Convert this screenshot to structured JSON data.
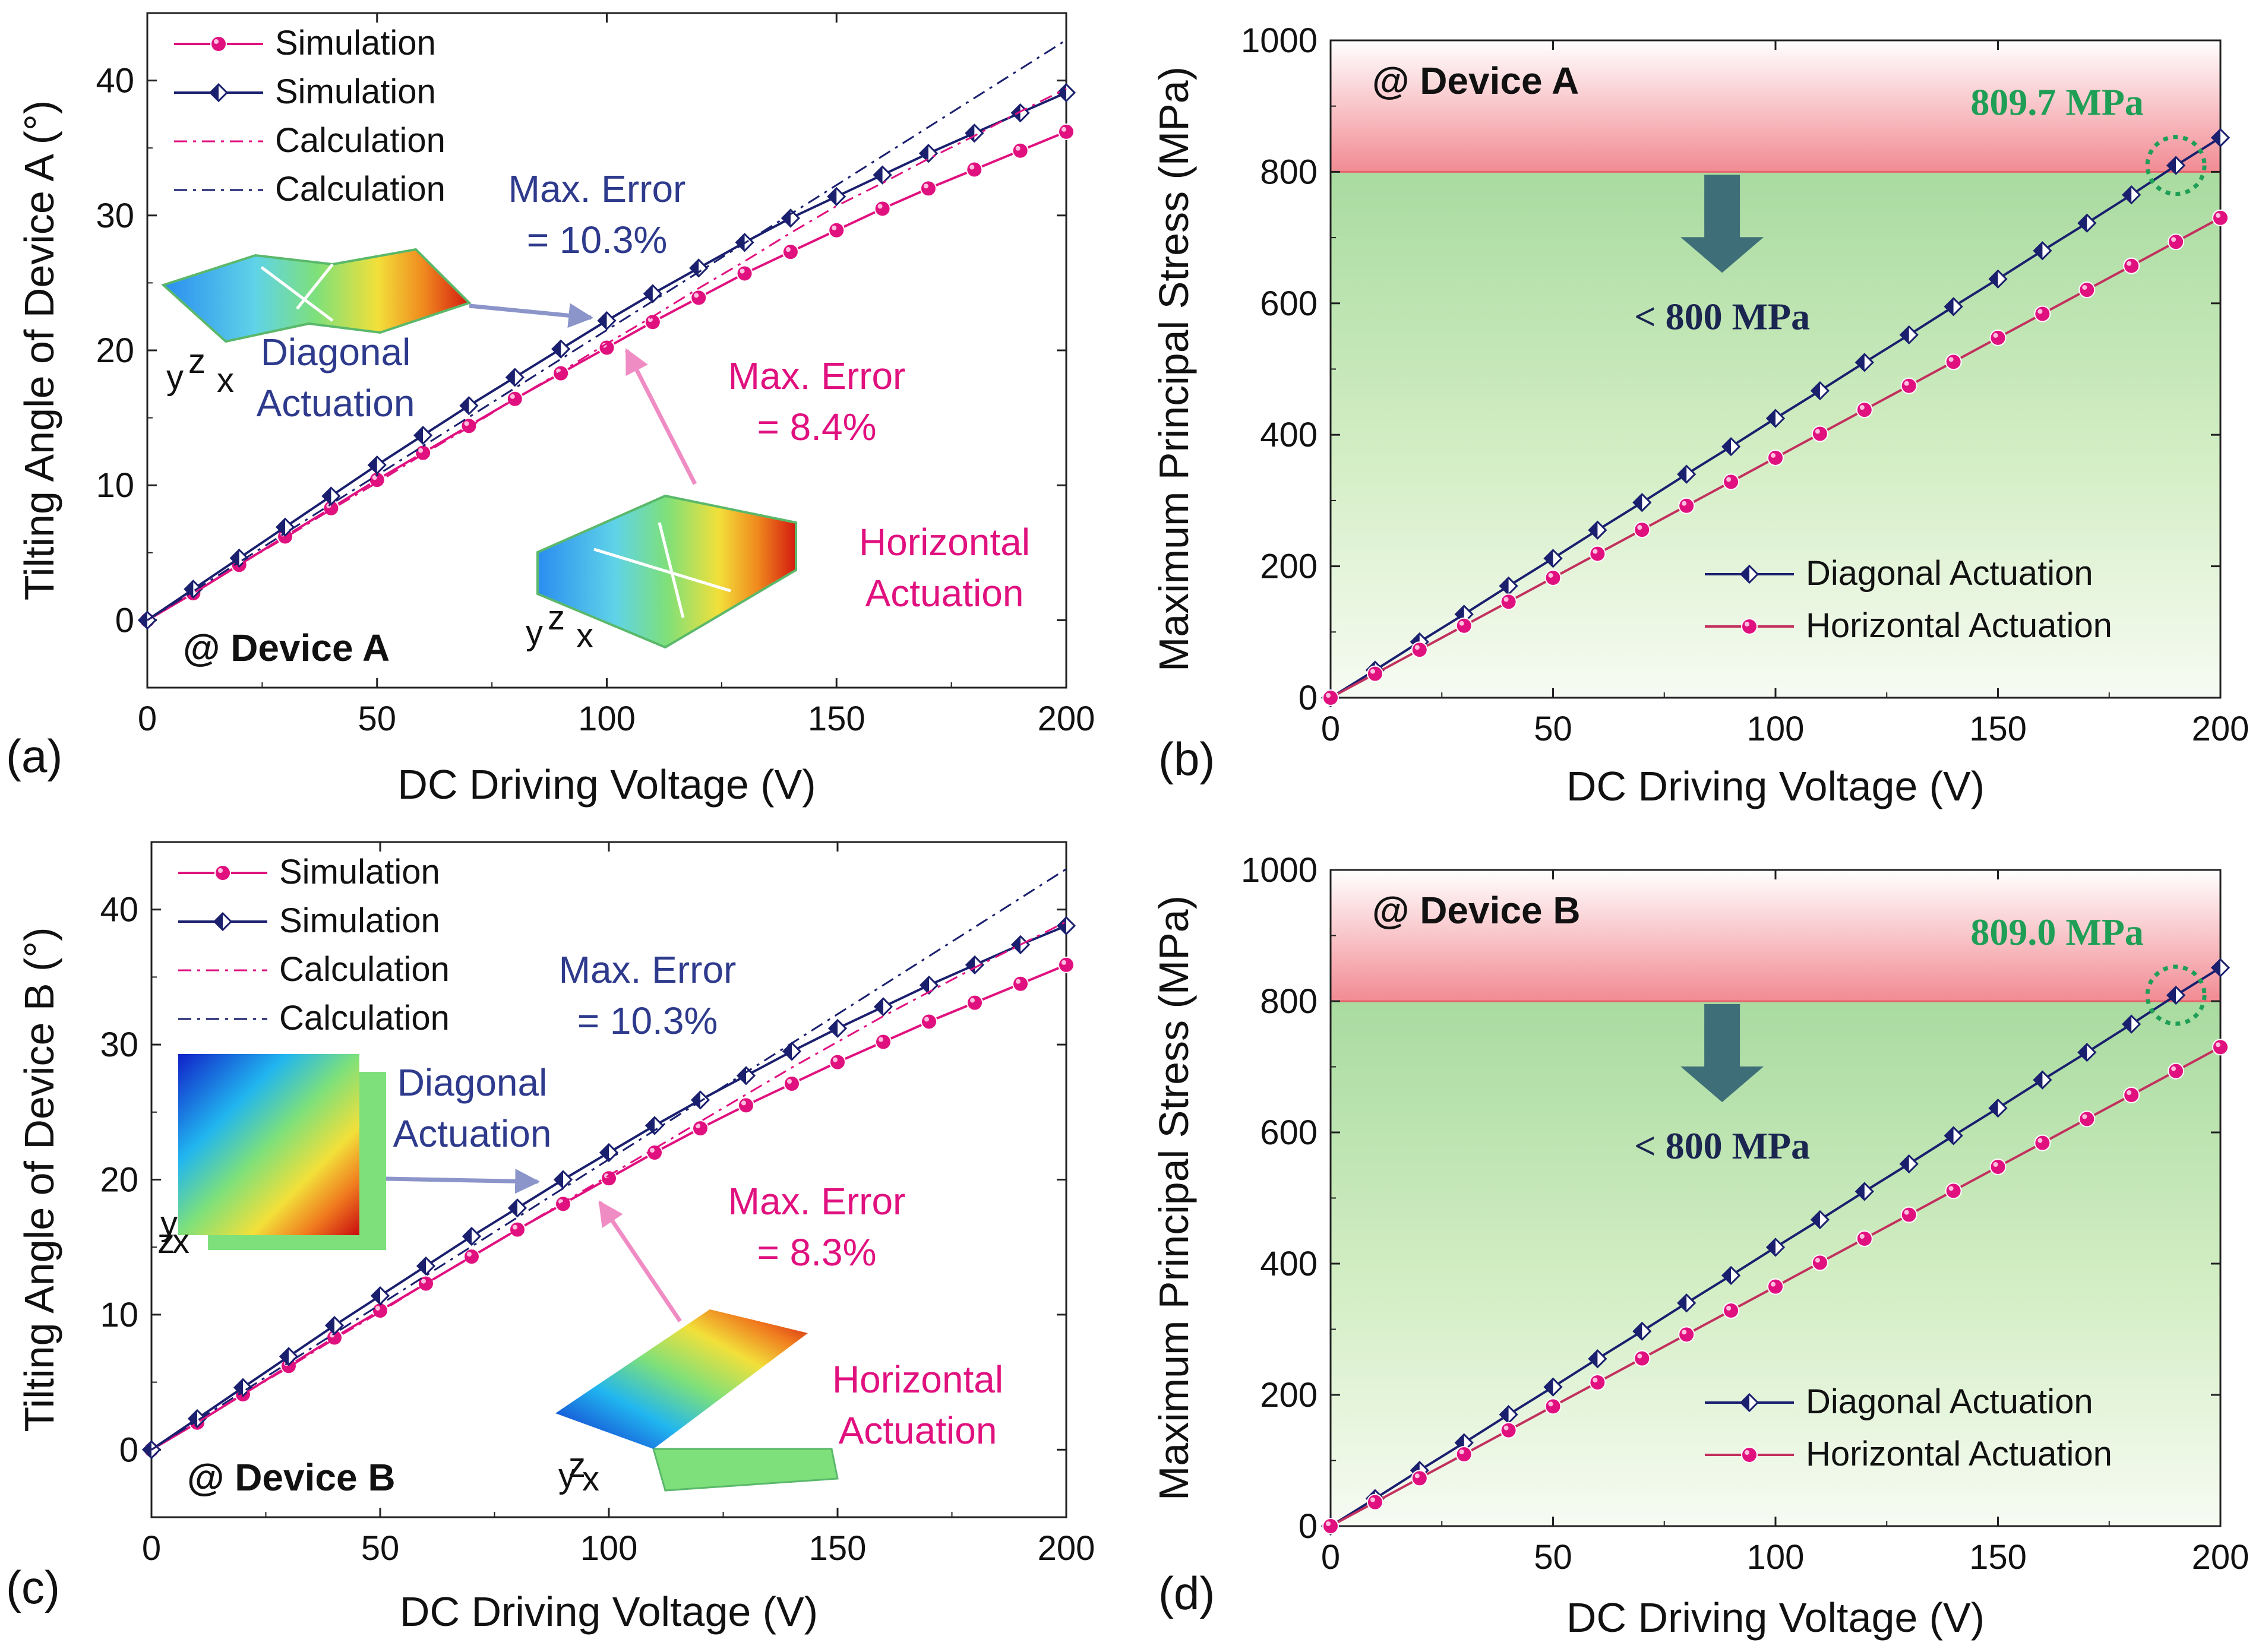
{
  "colors": {
    "horizontal": "#e0117f",
    "horizontal_line": "#c2305e",
    "diagonal": "#1a1f6e",
    "annot_blue": "#2e3a8c",
    "stress_green": "#1f9e56",
    "arrow_dark": "#3e6f78",
    "danger_band": "#f4a0a4"
  },
  "chart_data": [
    {
      "type": "line",
      "panel_label": "(a)",
      "device_label": "@ Device A",
      "xlabel": "DC Driving Voltage (V)",
      "ylabel": "Tilting Angle of Device A (°)",
      "xlim": [
        0,
        200
      ],
      "ylim": [
        -5,
        45
      ],
      "xticks": [
        "0",
        "50",
        "100",
        "150",
        "200"
      ],
      "yticks": [
        "0",
        "10",
        "20",
        "30",
        "40"
      ],
      "x": [
        0,
        10,
        20,
        30,
        40,
        50,
        60,
        70,
        80,
        90,
        100,
        110,
        120,
        130,
        140,
        150,
        160,
        170,
        180,
        190,
        200
      ],
      "series": [
        {
          "name": "Simulation",
          "kind": "horizontal-sim",
          "values": [
            0,
            2.0,
            4.1,
            6.2,
            8.3,
            10.4,
            12.4,
            14.4,
            16.4,
            18.3,
            20.2,
            22.1,
            23.9,
            25.7,
            27.3,
            28.9,
            30.5,
            32.0,
            33.4,
            34.8,
            36.2
          ]
        },
        {
          "name": "Simulation",
          "kind": "diagonal-sim",
          "values": [
            0,
            2.3,
            4.6,
            6.9,
            9.2,
            11.5,
            13.7,
            15.9,
            18.0,
            20.1,
            22.2,
            24.2,
            26.1,
            28.0,
            29.8,
            31.4,
            33.0,
            34.6,
            36.1,
            37.6,
            39.1
          ]
        },
        {
          "name": "Calculation",
          "kind": "horizontal-calc",
          "values": [
            0,
            2.0,
            4.1,
            6.1,
            8.2,
            10.2,
            12.3,
            14.3,
            16.4,
            18.4,
            20.5,
            22.5,
            24.6,
            26.6,
            28.7,
            30.7,
            32.4,
            34.2,
            35.9,
            37.7,
            39.4
          ]
        },
        {
          "name": "Calculation",
          "kind": "diagonal-calc",
          "values": [
            0,
            2.15,
            4.3,
            6.45,
            8.6,
            10.75,
            12.9,
            15.05,
            17.2,
            19.35,
            21.5,
            23.65,
            25.8,
            27.95,
            30.1,
            32.25,
            34.4,
            36.55,
            38.7,
            40.85,
            43.0
          ]
        }
      ],
      "annotations": [
        {
          "id": "diag-error",
          "lines": [
            "Max. Error",
            "= 10.3%"
          ]
        },
        {
          "id": "diag-label",
          "lines": [
            "Diagonal",
            "Actuation"
          ]
        },
        {
          "id": "horiz-error",
          "lines": [
            "Max. Error",
            "= 8.4%"
          ]
        },
        {
          "id": "horiz-label",
          "lines": [
            "Horizontal",
            "Actuation"
          ]
        }
      ],
      "axes_glyphs": [
        "y",
        "z",
        "x"
      ]
    },
    {
      "type": "line",
      "panel_label": "(b)",
      "device_label": "@ Device A",
      "xlabel": "DC Driving Voltage (V)",
      "ylabel": "Maximum Principal Stress (MPa)",
      "xlim": [
        0,
        200
      ],
      "ylim": [
        0,
        1000
      ],
      "xticks": [
        "0",
        "50",
        "100",
        "150",
        "200"
      ],
      "yticks": [
        "0",
        "200",
        "400",
        "600",
        "800",
        "1000"
      ],
      "threshold": 800,
      "threshold_label": "< 800 MPa",
      "peak_label": "809.7 MPa",
      "peak_point": [
        190,
        809.7
      ],
      "x": [
        0,
        10,
        20,
        30,
        40,
        50,
        60,
        70,
        80,
        90,
        100,
        110,
        120,
        130,
        140,
        150,
        160,
        170,
        180,
        190,
        200
      ],
      "series": [
        {
          "name": "Diagonal Actuation",
          "kind": "diagonal-sim",
          "values": [
            0,
            42,
            85,
            127,
            170,
            212,
            255,
            297,
            340,
            382,
            425,
            467,
            510,
            552,
            595,
            637,
            680,
            722,
            765,
            809.7,
            852
          ]
        },
        {
          "name": "Horizontal Actuation",
          "kind": "horizontal-sim",
          "values": [
            0,
            36.5,
            73,
            109.5,
            146,
            182.5,
            219,
            255.5,
            292,
            328.5,
            365,
            401.5,
            438,
            474.5,
            511,
            547.5,
            584,
            620.5,
            657,
            693.5,
            730
          ]
        }
      ]
    },
    {
      "type": "line",
      "panel_label": "(c)",
      "device_label": "@ Device B",
      "xlabel": "DC Driving Voltage (V)",
      "ylabel": "Tilting Angle of Device B (°)",
      "xlim": [
        0,
        200
      ],
      "ylim": [
        -5,
        45
      ],
      "xticks": [
        "0",
        "50",
        "100",
        "150",
        "200"
      ],
      "yticks": [
        "0",
        "10",
        "20",
        "30",
        "40"
      ],
      "x": [
        0,
        10,
        20,
        30,
        40,
        50,
        60,
        70,
        80,
        90,
        100,
        110,
        120,
        130,
        140,
        150,
        160,
        170,
        180,
        190,
        200
      ],
      "series": [
        {
          "name": "Simulation",
          "kind": "horizontal-sim",
          "values": [
            0,
            2.0,
            4.1,
            6.2,
            8.3,
            10.3,
            12.3,
            14.3,
            16.3,
            18.2,
            20.1,
            22.0,
            23.8,
            25.5,
            27.1,
            28.7,
            30.2,
            31.7,
            33.1,
            34.5,
            35.9
          ]
        },
        {
          "name": "Simulation",
          "kind": "diagonal-sim",
          "values": [
            0,
            2.3,
            4.6,
            6.9,
            9.2,
            11.4,
            13.6,
            15.8,
            17.9,
            20.0,
            22.0,
            24.0,
            25.9,
            27.7,
            29.5,
            31.2,
            32.8,
            34.4,
            35.9,
            37.4,
            38.8
          ]
        },
        {
          "name": "Calculation",
          "kind": "horizontal-calc",
          "values": [
            0,
            2.0,
            4.1,
            6.1,
            8.2,
            10.2,
            12.3,
            14.3,
            16.3,
            18.3,
            20.3,
            22.3,
            24.3,
            26.3,
            28.3,
            30.2,
            32.1,
            33.9,
            35.7,
            37.4,
            39.1
          ]
        },
        {
          "name": "Calculation",
          "kind": "diagonal-calc",
          "values": [
            0,
            2.15,
            4.3,
            6.45,
            8.6,
            10.75,
            12.9,
            15.05,
            17.2,
            19.35,
            21.5,
            23.65,
            25.8,
            27.95,
            30.1,
            32.25,
            34.4,
            36.55,
            38.7,
            40.85,
            43.0
          ]
        }
      ],
      "annotations": [
        {
          "id": "diag-error",
          "lines": [
            "Max. Error",
            "= 10.3%"
          ]
        },
        {
          "id": "diag-label",
          "lines": [
            "Diagonal",
            "Actuation"
          ]
        },
        {
          "id": "horiz-error",
          "lines": [
            "Max. Error",
            "= 8.3%"
          ]
        },
        {
          "id": "horiz-label",
          "lines": [
            "Horizontal",
            "Actuation"
          ]
        }
      ],
      "axes_glyphs": [
        "y",
        "z",
        "x"
      ]
    },
    {
      "type": "line",
      "panel_label": "(d)",
      "device_label": "@ Device B",
      "xlabel": "DC Driving Voltage (V)",
      "ylabel": "Maximum Principal Stress (MPa)",
      "xlim": [
        0,
        200
      ],
      "ylim": [
        0,
        1000
      ],
      "xticks": [
        "0",
        "50",
        "100",
        "150",
        "200"
      ],
      "yticks": [
        "0",
        "200",
        "400",
        "600",
        "800",
        "1000"
      ],
      "threshold": 800,
      "threshold_label": "< 800 MPa",
      "peak_label": "809.0 MPa",
      "peak_point": [
        190,
        809.0
      ],
      "x": [
        0,
        10,
        20,
        30,
        40,
        50,
        60,
        70,
        80,
        90,
        100,
        110,
        120,
        130,
        140,
        150,
        160,
        170,
        180,
        190,
        200
      ],
      "series": [
        {
          "name": "Diagonal Actuation",
          "kind": "diagonal-sim",
          "values": [
            0,
            42,
            85,
            127,
            170,
            212,
            255,
            297,
            340,
            382,
            425,
            467,
            510,
            552,
            595,
            637,
            680,
            722,
            765,
            809.0,
            851
          ]
        },
        {
          "name": "Horizontal Actuation",
          "kind": "horizontal-sim",
          "values": [
            0,
            36.5,
            73,
            109.5,
            146,
            182.5,
            219,
            255.5,
            292,
            328.5,
            365,
            401.5,
            438,
            474.5,
            511,
            547.5,
            584,
            620.5,
            657,
            693.5,
            730
          ]
        }
      ]
    }
  ]
}
